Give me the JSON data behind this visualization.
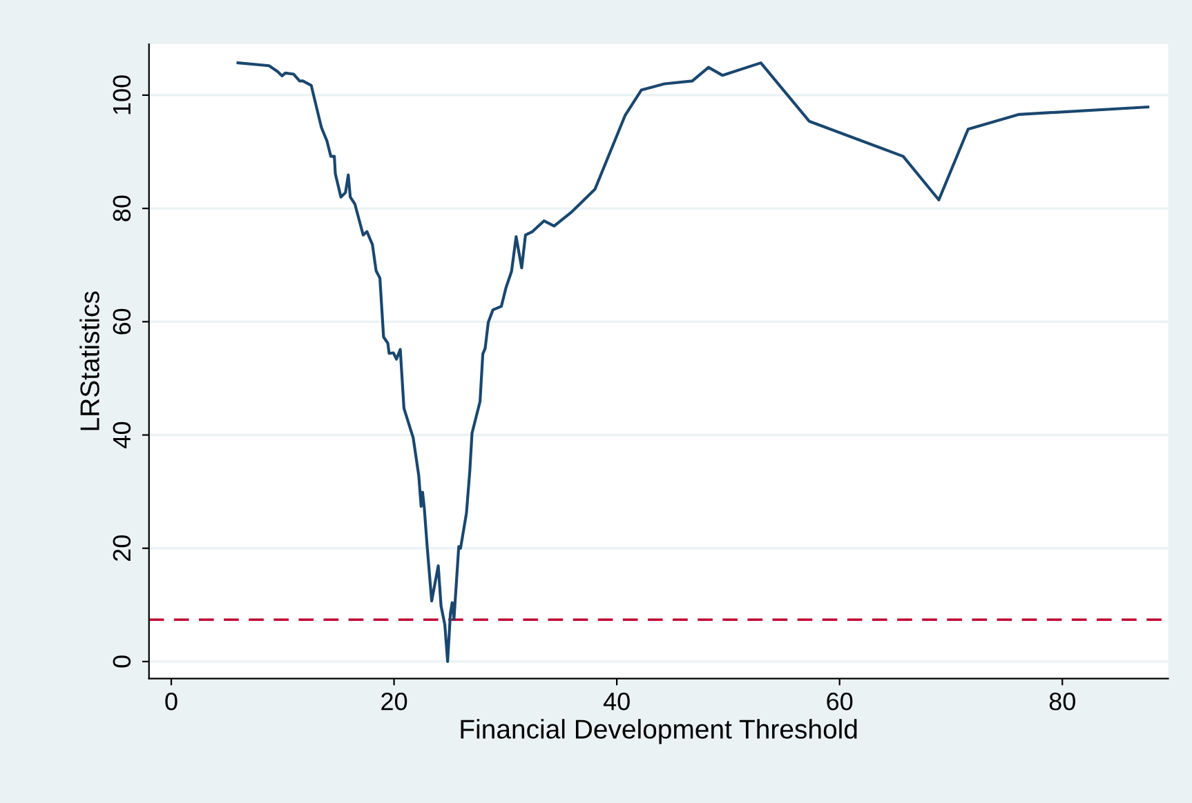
{
  "chart_data": {
    "type": "line",
    "xlabel": "Financial Development Threshold",
    "ylabel": "LRStatistics",
    "xlim": [
      -2,
      89.5
    ],
    "ylim": [
      -3,
      109
    ],
    "xticks": [
      0,
      20,
      40,
      60,
      80
    ],
    "yticks": [
      0,
      20,
      40,
      60,
      80,
      100
    ],
    "grid": "y",
    "series": [
      {
        "color": "#1a476f",
        "x": [
          5.99,
          8.78,
          9.53,
          9.95,
          10.24,
          10.99,
          11.52,
          11.82,
          12.57,
          13.07,
          13.48,
          13.98,
          14.32,
          14.64,
          14.73,
          15.23,
          15.64,
          15.89,
          16.07,
          16.48,
          16.82,
          17.23,
          17.57,
          18.06,
          18.39,
          18.73,
          19.06,
          19.44,
          19.56,
          19.94,
          20.22,
          20.56,
          20.89,
          21.72,
          22.22,
          22.43,
          22.56,
          22.72,
          22.97,
          23.38,
          23.97,
          24.22,
          24.56,
          24.81,
          25.06,
          25.22,
          25.38,
          25.81,
          25.97,
          26.5,
          26.8,
          27.0,
          27.72,
          27.97,
          28.18,
          28.46,
          28.88,
          29.63,
          30.05,
          30.55,
          30.96,
          31.46,
          31.8,
          32.42,
          33.46,
          34.37,
          35.96,
          38.04,
          40.74,
          42.2,
          44.28,
          46.78,
          48.23,
          49.48,
          52.93,
          57.27,
          65.71,
          68.91,
          71.54,
          76.12,
          87.68
        ],
        "values": [
          105.7,
          105.2,
          104.2,
          103.4,
          103.9,
          103.7,
          102.5,
          102.5,
          101.7,
          97.6,
          94.3,
          91.9,
          89.2,
          89.2,
          86.1,
          82.0,
          82.8,
          85.9,
          82.0,
          80.8,
          78.3,
          75.3,
          75.9,
          73.6,
          69.0,
          67.7,
          57.3,
          56.2,
          54.4,
          54.5,
          53.4,
          55.1,
          44.7,
          39.5,
          32.8,
          27.4,
          29.9,
          27.0,
          20.4,
          10.7,
          16.9,
          9.8,
          6.5,
          0,
          8.5,
          10.4,
          7.5,
          20.3,
          20.0,
          26.2,
          33.6,
          40.3,
          45.9,
          54.3,
          55.3,
          59.9,
          62.1,
          62.7,
          66.0,
          68.9,
          75.0,
          69.5,
          75.3,
          75.9,
          77.8,
          76.9,
          79.4,
          83.4,
          96.4,
          100.9,
          102.0,
          102.5,
          104.9,
          103.5,
          105.7,
          95.4,
          89.2,
          81.5,
          94.0,
          96.6,
          97.9
        ]
      }
    ],
    "ref_lines": [
      {
        "axis": "y",
        "value": 7.4,
        "color": "#c10534",
        "line_style": "dashed"
      }
    ]
  }
}
